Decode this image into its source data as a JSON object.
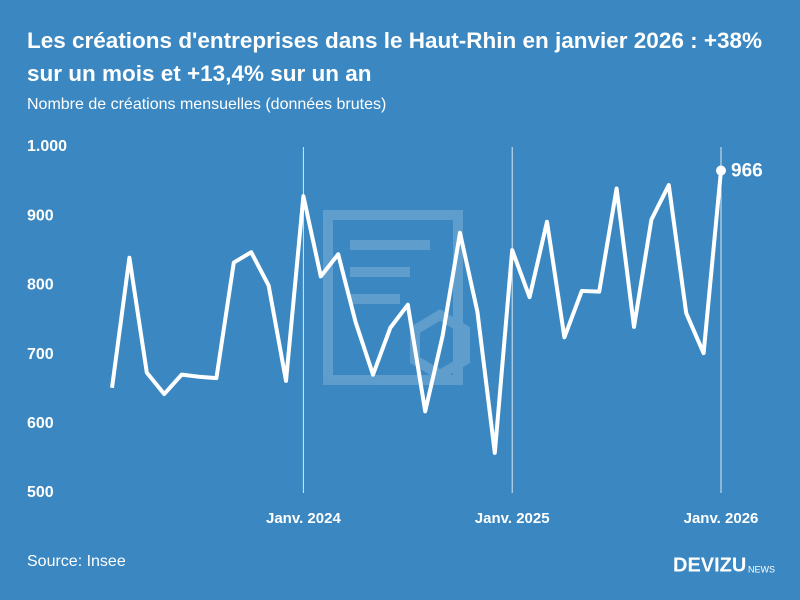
{
  "chart_data": {
    "type": "line",
    "title": "Les créations d'entreprises dans le Haut-Rhin en janvier 2026 : +38% sur un mois et +13,4% sur un an",
    "subtitle": "Nombre de créations mensuelles (données brutes)",
    "source": "Source: Insee",
    "brand": "DEVIZU",
    "brand_suffix": "NEWS",
    "categories": [
      null,
      null,
      null,
      null,
      null,
      null,
      null,
      null,
      null,
      null,
      null,
      "Janv. 2024",
      null,
      null,
      null,
      null,
      null,
      null,
      null,
      null,
      null,
      null,
      null,
      "Janv. 2025",
      null,
      null,
      null,
      null,
      null,
      null,
      null,
      null,
      null,
      null,
      null,
      "Janv. 2026"
    ],
    "series": [
      {
        "name": "Créations",
        "color": "#ffffff",
        "values": [
          652,
          840,
          674,
          643,
          671,
          668,
          666,
          833,
          848,
          800,
          662,
          929,
          813,
          845,
          747,
          671,
          739,
          772,
          618,
          727,
          876,
          762,
          558,
          851,
          783,
          892,
          725,
          792,
          791,
          940,
          740,
          895,
          945,
          760,
          702,
          966
        ]
      }
    ],
    "ylim": [
      500,
      1000
    ],
    "yticks": [
      500,
      600,
      700,
      800,
      900,
      {
        "value": 1000,
        "label": "1.000"
      }
    ],
    "grid": false
  }
}
